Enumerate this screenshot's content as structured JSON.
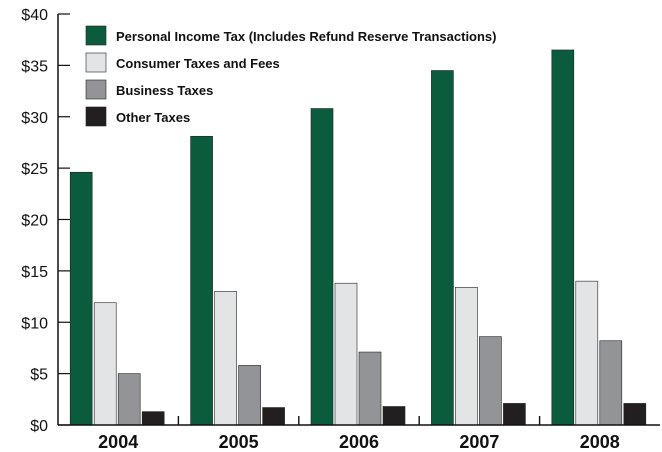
{
  "chart_data": {
    "type": "bar",
    "title": "",
    "xlabel": "",
    "ylabel": "",
    "categories": [
      "2004",
      "2005",
      "2006",
      "2007",
      "2008"
    ],
    "ylim": [
      0,
      40
    ],
    "yticks": [
      0,
      5,
      10,
      15,
      20,
      25,
      30,
      35,
      40
    ],
    "ytick_labels": [
      "$0",
      "$5",
      "$10",
      "$15",
      "$20",
      "$25",
      "$30",
      "$35",
      "$40"
    ],
    "grid": false,
    "legend_position": "top-left",
    "series": [
      {
        "name": "Personal Income Tax (Includes Refund Reserve Transactions)",
        "color": "#0b5b3d",
        "values": [
          24.6,
          28.1,
          30.8,
          34.5,
          36.5
        ]
      },
      {
        "name": "Consumer Taxes and Fees",
        "color": "#e3e4e6",
        "values": [
          11.9,
          13.0,
          13.8,
          13.4,
          14.0
        ]
      },
      {
        "name": "Business Taxes",
        "color": "#929497",
        "values": [
          5.0,
          5.8,
          7.1,
          8.6,
          8.2
        ]
      },
      {
        "name": "Other Taxes",
        "color": "#231f20",
        "values": [
          1.3,
          1.7,
          1.8,
          2.1,
          2.1
        ]
      }
    ]
  }
}
